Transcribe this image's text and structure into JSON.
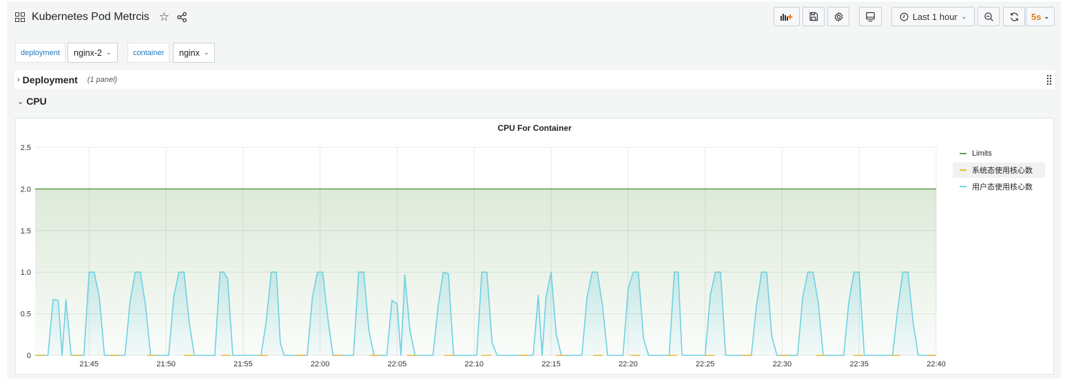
{
  "header": {
    "title": "Kubernetes Pod Metrcis",
    "time_range": "Last 1 hour",
    "refresh_rate": "5s"
  },
  "variables": [
    {
      "label": "deployment",
      "value": "nginx-2"
    },
    {
      "label": "container",
      "value": "nginx"
    }
  ],
  "rows": {
    "deployment": {
      "title": "Deployment",
      "count": "(1 panel)"
    },
    "cpu": {
      "title": "CPU"
    }
  },
  "panel": {
    "title": "CPU For Container"
  },
  "colors": {
    "limits": "#629e51",
    "system": "#eab839",
    "user": "#6ed0e0",
    "accent": "#eb7b18"
  },
  "chart_data": {
    "type": "line",
    "title": "CPU For Container",
    "x_domain": [
      "21:41:30",
      "22:40:00"
    ],
    "xtick_labels": [
      "21:45",
      "21:50",
      "21:55",
      "22:00",
      "22:05",
      "22:10",
      "22:15",
      "22:20",
      "22:25",
      "22:30",
      "22:35",
      "22:40"
    ],
    "ylim": [
      0,
      2.5
    ],
    "ytick_labels": [
      "0",
      "0.5",
      "1.0",
      "1.5",
      "2.0",
      "2.5"
    ],
    "grid": true,
    "legend_position": "right",
    "series": [
      {
        "name": "Limits",
        "color": "#629e51",
        "fill": true,
        "points": [
          [
            "21:41:30",
            2.0
          ],
          [
            "22:40:00",
            2.0
          ]
        ]
      },
      {
        "name": "系统态使用核心数",
        "color": "#eab839",
        "fill": false,
        "points": [
          [
            "21:41:30",
            0
          ],
          [
            "22:40:00",
            0
          ]
        ]
      },
      {
        "name": "用户态使用核心数",
        "color": "#6ed0e0",
        "fill": true,
        "points": [
          [
            "21:41:30",
            0
          ],
          [
            "21:42:20",
            0
          ],
          [
            "21:42:40",
            0.67
          ],
          [
            "21:43:00",
            0.66
          ],
          [
            "21:43:15",
            0
          ],
          [
            "21:43:30",
            0.67
          ],
          [
            "21:43:50",
            0
          ],
          [
            "21:44:40",
            0
          ],
          [
            "21:45:00",
            1.0
          ],
          [
            "21:45:20",
            1.0
          ],
          [
            "21:45:40",
            0.7
          ],
          [
            "21:46:00",
            0
          ],
          [
            "21:47:20",
            0
          ],
          [
            "21:47:40",
            0.65
          ],
          [
            "21:48:00",
            1.0
          ],
          [
            "21:48:20",
            1.0
          ],
          [
            "21:48:40",
            0.6
          ],
          [
            "21:49:00",
            0
          ],
          [
            "21:50:10",
            0
          ],
          [
            "21:50:30",
            0.7
          ],
          [
            "21:50:50",
            1.0
          ],
          [
            "21:51:10",
            1.0
          ],
          [
            "21:51:30",
            0.4
          ],
          [
            "21:51:50",
            0
          ],
          [
            "21:53:10",
            0
          ],
          [
            "21:53:30",
            1.0
          ],
          [
            "21:53:45",
            1.0
          ],
          [
            "21:54:00",
            0.92
          ],
          [
            "21:54:20",
            0
          ],
          [
            "21:56:10",
            0
          ],
          [
            "21:56:30",
            0.4
          ],
          [
            "21:56:50",
            1.0
          ],
          [
            "21:57:10",
            1.0
          ],
          [
            "21:57:25",
            0.15
          ],
          [
            "21:57:40",
            0
          ],
          [
            "21:59:10",
            0
          ],
          [
            "21:59:30",
            0.7
          ],
          [
            "21:59:50",
            1.0
          ],
          [
            "22:00:10",
            1.0
          ],
          [
            "22:00:30",
            0.45
          ],
          [
            "22:00:50",
            0
          ],
          [
            "22:02:10",
            0
          ],
          [
            "22:02:30",
            1.0
          ],
          [
            "22:02:50",
            1.0
          ],
          [
            "22:03:10",
            0.3
          ],
          [
            "22:03:30",
            0
          ],
          [
            "22:04:20",
            0
          ],
          [
            "22:04:40",
            0.66
          ],
          [
            "22:05:00",
            0.62
          ],
          [
            "22:05:15",
            0
          ],
          [
            "22:05:30",
            0.97
          ],
          [
            "22:05:50",
            0.3
          ],
          [
            "22:06:10",
            0
          ],
          [
            "22:07:20",
            0
          ],
          [
            "22:07:40",
            0.6
          ],
          [
            "22:08:00",
            1.0
          ],
          [
            "22:08:20",
            0.98
          ],
          [
            "22:08:40",
            0
          ],
          [
            "22:10:10",
            0
          ],
          [
            "22:10:30",
            1.0
          ],
          [
            "22:10:50",
            1.0
          ],
          [
            "22:11:10",
            0.15
          ],
          [
            "22:11:30",
            0
          ],
          [
            "22:13:50",
            0
          ],
          [
            "22:14:10",
            0.72
          ],
          [
            "22:14:25",
            0
          ],
          [
            "22:14:40",
            0.7
          ],
          [
            "22:15:00",
            1.0
          ],
          [
            "22:15:20",
            0.25
          ],
          [
            "22:15:40",
            0
          ],
          [
            "22:17:00",
            0
          ],
          [
            "22:17:20",
            0.7
          ],
          [
            "22:17:40",
            1.0
          ],
          [
            "22:18:00",
            1.0
          ],
          [
            "22:18:20",
            0.6
          ],
          [
            "22:18:40",
            0
          ],
          [
            "22:19:40",
            0
          ],
          [
            "22:20:00",
            0.8
          ],
          [
            "22:20:20",
            1.0
          ],
          [
            "22:20:40",
            1.0
          ],
          [
            "22:21:00",
            0.2
          ],
          [
            "22:21:20",
            0
          ],
          [
            "22:22:40",
            0
          ],
          [
            "22:23:00",
            1.0
          ],
          [
            "22:23:15",
            1.0
          ],
          [
            "22:23:30",
            0
          ],
          [
            "22:25:00",
            0
          ],
          [
            "22:25:20",
            0.72
          ],
          [
            "22:25:40",
            1.0
          ],
          [
            "22:26:00",
            1.0
          ],
          [
            "22:26:20",
            0
          ],
          [
            "22:28:00",
            0
          ],
          [
            "22:28:20",
            0.6
          ],
          [
            "22:28:40",
            1.0
          ],
          [
            "22:29:00",
            1.0
          ],
          [
            "22:29:20",
            0.22
          ],
          [
            "22:29:40",
            0
          ],
          [
            "22:31:00",
            0
          ],
          [
            "22:31:20",
            0.7
          ],
          [
            "22:31:40",
            1.0
          ],
          [
            "22:32:00",
            1.0
          ],
          [
            "22:32:20",
            0.65
          ],
          [
            "22:32:40",
            0
          ],
          [
            "22:34:00",
            0
          ],
          [
            "22:34:20",
            0.65
          ],
          [
            "22:34:40",
            1.0
          ],
          [
            "22:35:00",
            1.0
          ],
          [
            "22:35:20",
            0
          ],
          [
            "22:37:10",
            0
          ],
          [
            "22:37:30",
            0.55
          ],
          [
            "22:37:50",
            1.0
          ],
          [
            "22:38:10",
            1.0
          ],
          [
            "22:38:30",
            0.4
          ],
          [
            "22:38:50",
            0
          ],
          [
            "22:40:00",
            0
          ]
        ]
      }
    ]
  }
}
